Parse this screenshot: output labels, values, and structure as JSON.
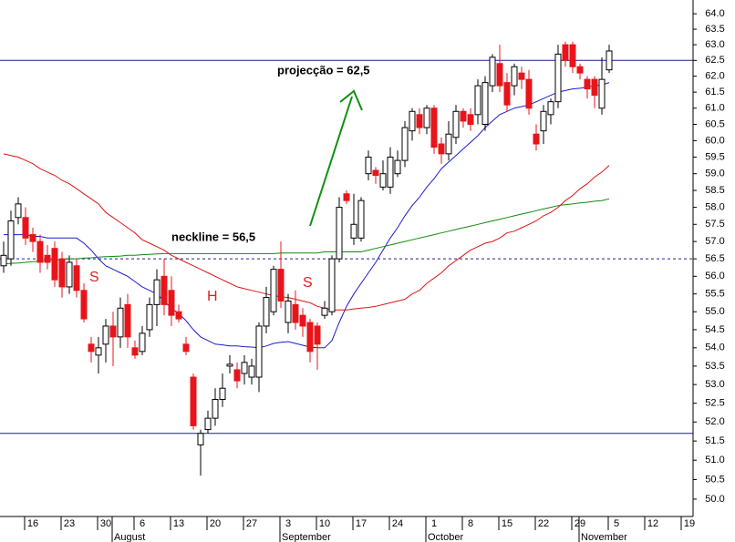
{
  "chart_data": {
    "type": "candlestick",
    "log_scale": true,
    "grid": false,
    "up_color": "#ffffff",
    "down_color": "#e8141b",
    "categories": [
      null,
      null,
      null,
      null,
      "16",
      null,
      null,
      null,
      null,
      "23",
      null,
      null,
      null,
      null,
      "30",
      null,
      null,
      null,
      null,
      "6",
      null,
      null,
      null,
      null,
      "13",
      null,
      null,
      null,
      null,
      "20",
      null,
      null,
      null,
      null,
      "27",
      null,
      null,
      null,
      null,
      "3",
      null,
      null,
      null,
      null,
      "10",
      null,
      null,
      null,
      null,
      "17",
      null,
      null,
      null,
      null,
      "24",
      null,
      null,
      null,
      null,
      "1",
      null,
      null,
      null,
      null,
      "8",
      null,
      null,
      null,
      null,
      "15",
      null,
      null,
      null,
      null,
      "22",
      null,
      null,
      null,
      null,
      "29",
      null,
      null,
      null,
      null,
      "5",
      null,
      null,
      null,
      null,
      "12",
      null,
      null,
      null,
      null,
      "19"
    ],
    "month_labels": [
      null,
      null,
      null,
      null,
      null,
      null,
      null,
      null,
      null,
      null,
      null,
      null,
      null,
      null,
      null,
      null,
      "August",
      null,
      null,
      null,
      null,
      null,
      null,
      null,
      null,
      null,
      null,
      null,
      null,
      null,
      null,
      null,
      null,
      null,
      null,
      null,
      null,
      null,
      null,
      "September",
      null,
      null,
      null,
      null,
      null,
      null,
      null,
      null,
      null,
      null,
      null,
      null,
      null,
      null,
      null,
      null,
      null,
      null,
      null,
      "October",
      null,
      null,
      null,
      null,
      null,
      null,
      null,
      null,
      null,
      null,
      null,
      null,
      null,
      null,
      null,
      null,
      null,
      null,
      null,
      null,
      "November",
      null,
      null,
      null,
      null,
      null,
      null,
      null,
      null,
      null,
      null,
      null,
      null,
      null,
      null
    ],
    "open": [
      56.3,
      56.5,
      57.7,
      57.7,
      57.2,
      57.0,
      56.6,
      56.8,
      56.5,
      55.7,
      56.3,
      55.6,
      54.1,
      53.8,
      54.1,
      54.6,
      54.3,
      55.2,
      54.0,
      53.9,
      54.5,
      55.2,
      56.0,
      55.6,
      55.0,
      54.1,
      53.2,
      51.4,
      51.8,
      52.1,
      52.6,
      53.5,
      53.4,
      53.3,
      53.2,
      53.2,
      54.6,
      55.0,
      56.2,
      54.7,
      55.2,
      54.9,
      54.7,
      54.6,
      54.9,
      55.0,
      56.5,
      58.4,
      57.1,
      57.1,
      59.0,
      59.1,
      58.6,
      58.6,
      59.0,
      59.4,
      60.3,
      60.8,
      60.4,
      61.0,
      59.9,
      59.6,
      60.1,
      60.9,
      60.8,
      60.8,
      60.5,
      61.7,
      62.4,
      61.8,
      61.7,
      62.1,
      61.9,
      60.2,
      60.3,
      60.8,
      61.2,
      63.0,
      63.0,
      62.3,
      61.9,
      61.9,
      61.0,
      62.2,
      null,
      null,
      null,
      null,
      null,
      null,
      null,
      null,
      null,
      null,
      null
    ],
    "high": [
      57.0,
      57.9,
      58.3,
      58.0,
      57.4,
      57.2,
      56.9,
      57.0,
      56.7,
      56.6,
      56.5,
      55.8,
      54.3,
      54.3,
      54.8,
      55.0,
      55.4,
      55.5,
      54.2,
      54.6,
      55.4,
      56.2,
      56.5,
      56.0,
      55.2,
      54.3,
      53.3,
      51.8,
      52.3,
      52.9,
      53.3,
      53.8,
      53.6,
      53.8,
      53.7,
      54.7,
      55.7,
      56.3,
      57.0,
      55.5,
      55.6,
      55.1,
      54.8,
      54.7,
      55.3,
      56.6,
      58.3,
      58.5,
      58.4,
      58.3,
      59.7,
      59.2,
      59.4,
      59.8,
      59.7,
      60.6,
      61.0,
      61.0,
      61.1,
      61.1,
      60.1,
      60.6,
      61.1,
      61.0,
      61.0,
      61.9,
      62.0,
      62.7,
      63.0,
      62.1,
      62.4,
      62.3,
      62.2,
      60.5,
      61.1,
      61.3,
      63.0,
      63.1,
      63.1,
      62.4,
      62.0,
      62.0,
      62.6,
      63.0,
      null,
      null,
      null,
      null,
      null,
      null,
      null,
      null,
      null,
      null,
      null
    ],
    "low": [
      56.1,
      56.3,
      57.5,
      56.9,
      56.7,
      56.1,
      56.2,
      55.7,
      55.4,
      55.5,
      55.4,
      54.7,
      53.6,
      53.3,
      53.6,
      53.5,
      54.0,
      54.0,
      53.7,
      53.8,
      54.3,
      54.6,
      54.9,
      54.6,
      54.7,
      53.8,
      51.8,
      50.6,
      51.7,
      51.9,
      52.4,
      53.3,
      52.9,
      53.0,
      53.0,
      52.8,
      54.4,
      54.9,
      55.1,
      54.4,
      54.5,
      54.3,
      53.6,
      53.4,
      54.8,
      54.9,
      56.4,
      58.1,
      56.9,
      57.0,
      58.8,
      58.7,
      58.5,
      58.4,
      58.9,
      59.2,
      60.0,
      60.2,
      60.2,
      59.6,
      59.3,
      59.4,
      59.9,
      60.4,
      60.3,
      60.5,
      60.3,
      61.5,
      61.5,
      60.9,
      61.4,
      61.6,
      60.8,
      59.7,
      59.9,
      60.5,
      61.0,
      62.3,
      62.1,
      61.9,
      61.3,
      61.0,
      60.8,
      62.1,
      null,
      null,
      null,
      null,
      null,
      null,
      null,
      null,
      null,
      null,
      null
    ],
    "close": [
      56.6,
      57.6,
      58.1,
      57.1,
      57.0,
      56.4,
      56.4,
      55.9,
      55.7,
      56.4,
      55.6,
      54.8,
      53.9,
      54.0,
      54.6,
      54.3,
      55.1,
      54.3,
      53.8,
      54.4,
      55.2,
      55.9,
      55.2,
      54.9,
      54.8,
      53.9,
      51.9,
      51.7,
      52.1,
      52.6,
      52.9,
      53.55,
      53.1,
      53.6,
      53.5,
      54.6,
      55.4,
      56.2,
      55.3,
      55.3,
      54.7,
      54.6,
      53.9,
      54.1,
      55.1,
      56.5,
      58.0,
      58.2,
      57.5,
      58.2,
      59.5,
      58.95,
      59.0,
      59.5,
      59.4,
      60.4,
      60.9,
      60.4,
      61.0,
      59.8,
      59.6,
      60.2,
      60.9,
      60.6,
      60.5,
      61.7,
      61.8,
      62.6,
      61.7,
      61.1,
      62.3,
      61.9,
      61.0,
      59.9,
      60.9,
      61.2,
      62.7,
      62.5,
      62.3,
      62.1,
      61.6,
      61.4,
      61.9,
      62.8,
      null,
      null,
      null,
      null,
      null,
      null,
      null,
      null,
      null,
      null,
      null
    ],
    "overlays": [
      {
        "color": "#1c1cd0",
        "values": [
          57.2,
          57.2,
          57.2,
          57.2,
          57.15,
          57.15,
          57.1,
          57.1,
          57.1,
          57.1,
          57.1,
          56.95,
          56.75,
          56.5,
          56.3,
          56.2,
          56.1,
          56.0,
          55.85,
          55.7,
          55.6,
          55.5,
          55.3,
          55.1,
          54.95,
          54.75,
          54.5,
          54.3,
          54.2,
          54.1,
          54.08,
          54.05,
          54.05,
          54.03,
          54.02,
          54.0,
          54.05,
          54.12,
          54.15,
          54.17,
          54.12,
          54.07,
          54.02,
          54.0,
          54.0,
          54.2,
          54.7,
          55.15,
          55.5,
          55.8,
          56.1,
          56.4,
          56.75,
          57.1,
          57.4,
          57.75,
          58.05,
          58.3,
          58.6,
          58.85,
          59.15,
          59.35,
          59.55,
          59.75,
          59.95,
          60.15,
          60.4,
          60.6,
          60.8,
          60.9,
          61.0,
          61.05,
          61.1,
          61.2,
          61.3,
          61.4,
          61.5,
          61.55,
          61.6,
          61.62,
          61.66,
          61.7,
          61.72,
          61.8,
          null,
          null,
          null,
          null,
          null,
          null,
          null,
          null,
          null,
          null,
          null
        ]
      },
      {
        "color": "#e01414",
        "values": [
          59.6,
          59.55,
          59.5,
          59.4,
          59.3,
          59.15,
          59.05,
          58.95,
          58.8,
          58.7,
          58.55,
          58.4,
          58.25,
          58.1,
          57.85,
          57.7,
          57.55,
          57.4,
          57.25,
          57.05,
          56.95,
          56.85,
          56.75,
          56.6,
          56.5,
          56.4,
          56.3,
          56.2,
          56.1,
          56.0,
          55.9,
          55.8,
          55.7,
          55.65,
          55.6,
          55.55,
          55.5,
          55.45,
          55.42,
          55.4,
          55.35,
          55.3,
          55.25,
          55.15,
          55.1,
          55.05,
          55.05,
          55.05,
          55.08,
          55.1,
          55.12,
          55.15,
          55.2,
          55.25,
          55.3,
          55.35,
          55.5,
          55.6,
          55.8,
          55.95,
          56.1,
          56.3,
          56.45,
          56.6,
          56.75,
          56.85,
          56.95,
          57.0,
          57.1,
          57.25,
          57.3,
          57.4,
          57.5,
          57.6,
          57.75,
          57.85,
          58.0,
          58.2,
          58.35,
          58.55,
          58.7,
          58.9,
          59.05,
          59.25,
          null,
          null,
          null,
          null,
          null,
          null,
          null,
          null,
          null,
          null,
          null
        ]
      },
      {
        "color": "#108a10",
        "values": [
          56.35,
          56.37,
          56.38,
          56.4,
          56.42,
          56.43,
          56.45,
          56.46,
          56.48,
          56.5,
          56.5,
          56.52,
          56.53,
          56.55,
          56.56,
          56.57,
          56.58,
          56.6,
          56.6,
          56.62,
          56.63,
          56.64,
          56.65,
          56.65,
          56.65,
          56.65,
          56.65,
          56.65,
          56.65,
          56.65,
          56.65,
          56.65,
          56.65,
          56.65,
          56.65,
          56.65,
          56.65,
          56.65,
          56.67,
          56.67,
          56.67,
          56.67,
          56.67,
          56.67,
          56.7,
          56.7,
          56.7,
          56.7,
          56.7,
          56.7,
          56.75,
          56.8,
          56.85,
          56.9,
          56.95,
          57.0,
          57.05,
          57.1,
          57.15,
          57.2,
          57.25,
          57.3,
          57.35,
          57.4,
          57.45,
          57.5,
          57.55,
          57.6,
          57.65,
          57.7,
          57.75,
          57.8,
          57.85,
          57.9,
          57.95,
          58.0,
          58.05,
          58.08,
          58.1,
          58.13,
          58.15,
          58.18,
          58.2,
          58.25,
          null,
          null,
          null,
          null,
          null,
          null,
          null,
          null,
          null,
          null,
          null
        ]
      }
    ],
    "levels": [
      {
        "value": 62.5,
        "style": "solid",
        "color": "#1c1c9c"
      },
      {
        "value": 56.5,
        "style": "dashed",
        "color": "#1c1c9c"
      },
      {
        "value": 51.7,
        "style": "solid",
        "color": "#1c1c9c"
      }
    ],
    "annotations": [
      "projecção = 62,5",
      "neckline = 56,5",
      "S",
      "H",
      "S"
    ],
    "ylim": [
      49.56,
      64.45
    ],
    "yticks": [
      {
        "value": 64,
        "label": "64.0"
      },
      {
        "value": 63.5,
        "label": "63.5"
      },
      {
        "value": 63,
        "label": "63.0"
      },
      {
        "value": 62.5,
        "label": "62.5"
      },
      {
        "value": 62,
        "label": "62.0"
      },
      {
        "value": 61.5,
        "label": "61.5"
      },
      {
        "value": 61,
        "label": "61.0"
      },
      {
        "value": 60.5,
        "label": "60.5"
      },
      {
        "value": 60,
        "label": "60.0"
      },
      {
        "value": 59.5,
        "label": "59.5"
      },
      {
        "value": 59,
        "label": "59.0"
      },
      {
        "value": 58.5,
        "label": "58.5"
      },
      {
        "value": 58,
        "label": "58.0"
      },
      {
        "value": 57.5,
        "label": "57.5"
      },
      {
        "value": 57,
        "label": "57.0"
      },
      {
        "value": 56.5,
        "label": "56.5"
      },
      {
        "value": 56,
        "label": "56.0"
      },
      {
        "value": 55.5,
        "label": "55.5"
      },
      {
        "value": 55,
        "label": "55.0"
      },
      {
        "value": 54.5,
        "label": "54.5"
      },
      {
        "value": 54,
        "label": "54.0"
      },
      {
        "value": 53.5,
        "label": "53.5"
      },
      {
        "value": 53,
        "label": "53.0"
      },
      {
        "value": 52.5,
        "label": "52.5"
      },
      {
        "value": 52,
        "label": "52.0"
      },
      {
        "value": 51.5,
        "label": "51.5"
      },
      {
        "value": 51,
        "label": "51.0"
      },
      {
        "value": 50.5,
        "label": "50.5"
      },
      {
        "value": 50,
        "label": "50.0"
      }
    ]
  }
}
